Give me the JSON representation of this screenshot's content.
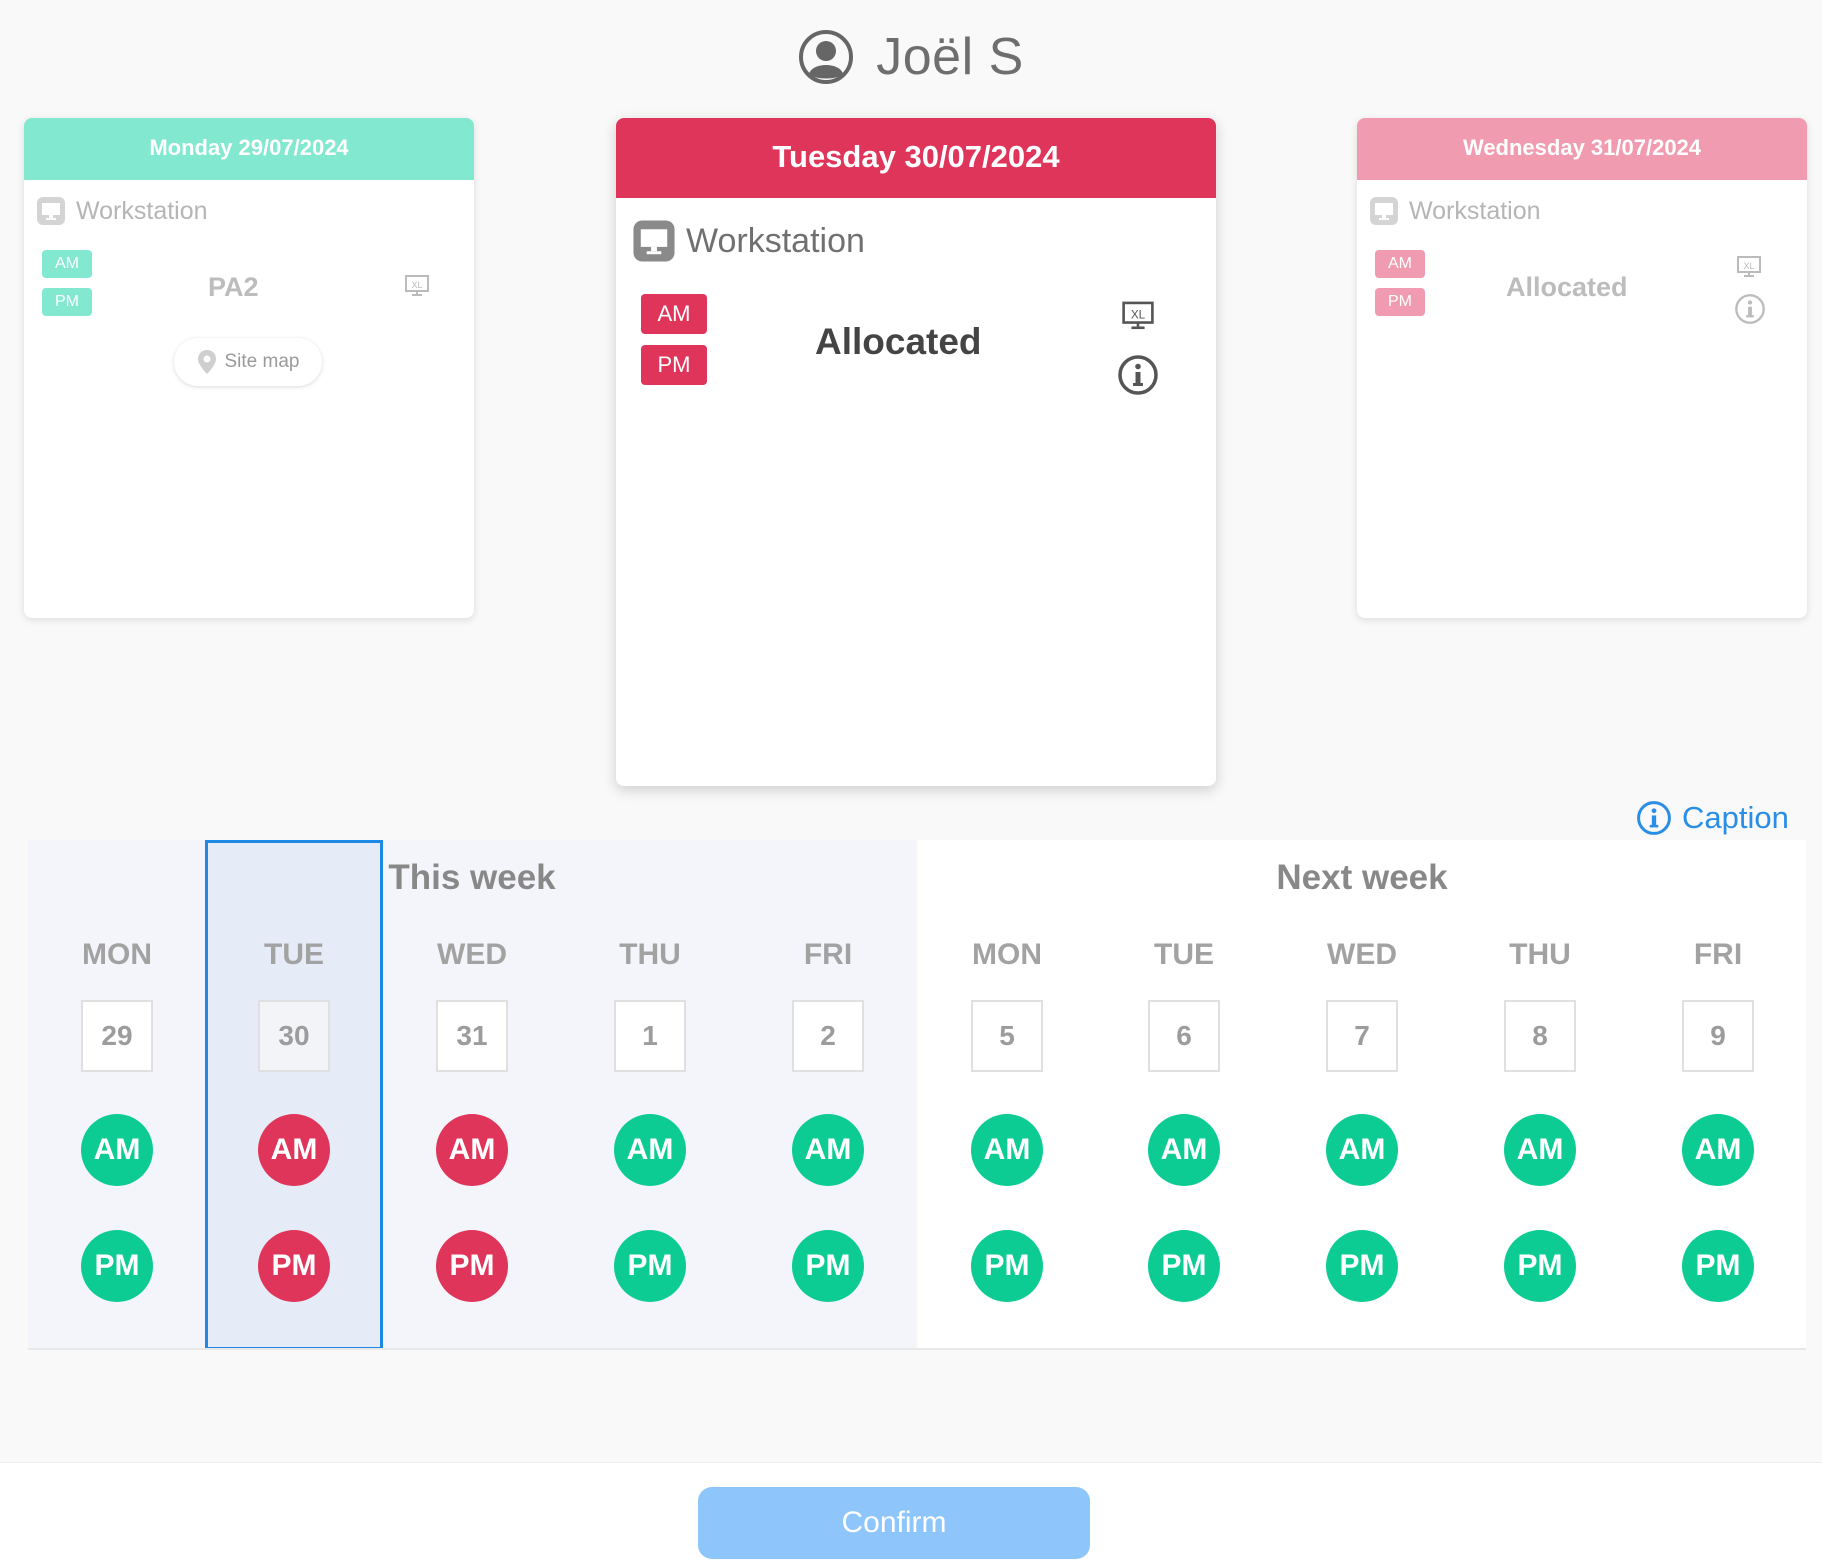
{
  "header": {
    "user_name": "Joël S"
  },
  "cards": {
    "left": {
      "date": "Monday 29/07/2024",
      "workstation_label": "Workstation",
      "am": "AM",
      "pm": "PM",
      "seat": "PA2",
      "site_map": "Site map"
    },
    "center": {
      "date": "Tuesday 30/07/2024",
      "workstation_label": "Workstation",
      "am": "AM",
      "pm": "PM",
      "seat": "Allocated"
    },
    "right": {
      "date": "Wednesday 31/07/2024",
      "workstation_label": "Workstation",
      "am": "AM",
      "pm": "PM",
      "seat": "Allocated"
    }
  },
  "caption": "Caption",
  "this_week": {
    "title": "This week",
    "days": [
      {
        "name": "MON",
        "num": "29",
        "am": "AM",
        "pm": "PM",
        "status": "free"
      },
      {
        "name": "TUE",
        "num": "30",
        "am": "AM",
        "pm": "PM",
        "status": "allocated"
      },
      {
        "name": "WED",
        "num": "31",
        "am": "AM",
        "pm": "PM",
        "status": "allocated"
      },
      {
        "name": "THU",
        "num": "1",
        "am": "AM",
        "pm": "PM",
        "status": "free"
      },
      {
        "name": "FRI",
        "num": "2",
        "am": "AM",
        "pm": "PM",
        "status": "free"
      }
    ]
  },
  "next_week": {
    "title": "Next week",
    "days": [
      {
        "name": "MON",
        "num": "5",
        "am": "AM",
        "pm": "PM",
        "status": "free"
      },
      {
        "name": "TUE",
        "num": "6",
        "am": "AM",
        "pm": "PM",
        "status": "free"
      },
      {
        "name": "WED",
        "num": "7",
        "am": "AM",
        "pm": "PM",
        "status": "free"
      },
      {
        "name": "THU",
        "num": "8",
        "am": "AM",
        "pm": "PM",
        "status": "free"
      },
      {
        "name": "FRI",
        "num": "9",
        "am": "AM",
        "pm": "PM",
        "status": "free"
      }
    ]
  },
  "footer": {
    "confirm_label": "Confirm"
  },
  "colors": {
    "free": "#0ccc94",
    "allocated": "#e0355a",
    "selected_border": "#1e88e5",
    "monday_header": "#82e8cf",
    "tuesday_header": "#e0355a",
    "wednesday_header": "#f19bb0"
  },
  "icons": [
    "user-icon",
    "monitor-icon",
    "xl-screen-icon",
    "info-icon",
    "location-pin-icon"
  ]
}
